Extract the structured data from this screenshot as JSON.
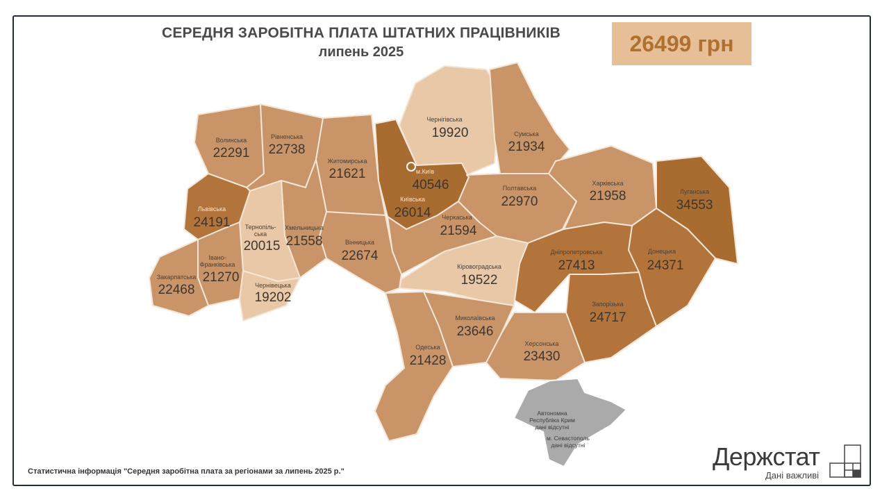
{
  "header": {
    "title": "СЕРЕДНЯ ЗАРОБІТНА ПЛАТА ШТАТНИХ ПРАЦІВНИКІВ",
    "subtitle": "липень 2025",
    "national_average": "26499 грн"
  },
  "legend_colors": {
    "light": "#e8c8a6",
    "medium": "#c99568",
    "dark": "#b2743a",
    "darkest": "#a86b30",
    "no_data": "#aaaaaa",
    "badge": "#e6bf97"
  },
  "regions": {
    "volyn": {
      "name": "Волинська",
      "value": "22291",
      "tier": "medium"
    },
    "rivne": {
      "name": "Рівненська",
      "value": "22738",
      "tier": "medium"
    },
    "zhytomyr": {
      "name": "Житомирська",
      "value": "21621",
      "tier": "medium"
    },
    "kyiv_city": {
      "name": "м.Київ",
      "value": "40546",
      "tier": "darkest"
    },
    "kyiv": {
      "name": "Київська",
      "value": "26014",
      "tier": "darkest"
    },
    "chernihiv": {
      "name": "Чернігівська",
      "value": "19920",
      "tier": "light"
    },
    "sumy": {
      "name": "Сумська",
      "value": "21934",
      "tier": "medium"
    },
    "poltava": {
      "name": "Полтавська",
      "value": "22970",
      "tier": "medium"
    },
    "kharkiv": {
      "name": "Харківська",
      "value": "21958",
      "tier": "medium"
    },
    "luhansk": {
      "name": "Луганська",
      "value": "34553",
      "tier": "darkest"
    },
    "donetsk": {
      "name": "Донецька",
      "value": "24371",
      "tier": "dark"
    },
    "dnipro": {
      "name": "Дніпропетровська",
      "value": "27413",
      "tier": "dark"
    },
    "zaporizhzhia": {
      "name": "Запорізька",
      "value": "24717",
      "tier": "dark"
    },
    "kherson": {
      "name": "Херсонська",
      "value": "23430",
      "tier": "medium"
    },
    "mykolaiv": {
      "name": "Миколаївська",
      "value": "23646",
      "tier": "medium"
    },
    "odesa": {
      "name": "Одеська",
      "value": "21428",
      "tier": "medium"
    },
    "kirovohrad": {
      "name": "Кіровоградська",
      "value": "19522",
      "tier": "light"
    },
    "cherkasy": {
      "name": "Черкаська",
      "value": "21594",
      "tier": "medium"
    },
    "vinnytsia": {
      "name": "Вінницька",
      "value": "22674",
      "tier": "medium"
    },
    "khmelnytskyi": {
      "name": "Хмельницька",
      "value": "21558",
      "tier": "medium"
    },
    "ternopil": {
      "name_line1": "Тернопіль-",
      "name_line2": "ська",
      "value": "20015",
      "tier": "light"
    },
    "lviv": {
      "name": "Львівська",
      "value": "24191",
      "tier": "dark"
    },
    "ivano_frankivsk": {
      "name_line1": "Івано-",
      "name_line2": "Франківська",
      "value": "21270",
      "tier": "medium"
    },
    "zakarpattia": {
      "name": "Закарпатська",
      "value": "22468",
      "tier": "medium"
    },
    "chernivtsi": {
      "name": "Чернівецька",
      "value": "19202",
      "tier": "light"
    }
  },
  "crimea": {
    "line1": "Автономна",
    "line2": "Республіка Крим",
    "line3": "дані відсутні",
    "line4": "м. Севастополь",
    "line5": "дані відсутні"
  },
  "footer": {
    "source": "Статистична інформація \"Середня заробітна плата за регіонами за липень 2025 р.\""
  },
  "logo": {
    "name": "Держстат",
    "slogan": "Дані важливі"
  }
}
